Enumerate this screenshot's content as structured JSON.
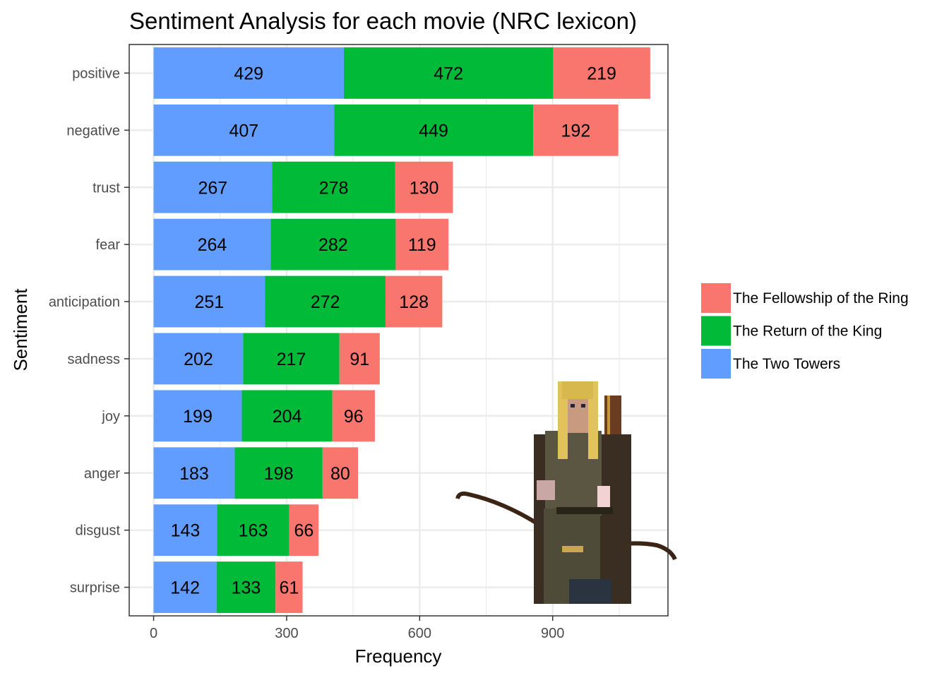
{
  "chart_data": {
    "type": "bar",
    "orientation": "horizontal",
    "stacked": true,
    "title": "Sentiment Analysis for each movie (NRC lexicon)",
    "xlabel": "Frequency",
    "ylabel": "Sentiment",
    "xlim": [
      -55,
      1160
    ],
    "xticks": [
      0,
      300,
      600,
      900
    ],
    "grid": true,
    "legend_position": "right",
    "categories": [
      "positive",
      "negative",
      "trust",
      "fear",
      "anticipation",
      "sadness",
      "joy",
      "anger",
      "disgust",
      "surprise"
    ],
    "series": [
      {
        "name": "The Two Towers",
        "color": "#619CFF",
        "values": [
          429,
          407,
          267,
          264,
          251,
          202,
          199,
          183,
          143,
          142
        ]
      },
      {
        "name": "The Return of the King",
        "color": "#00BA38",
        "values": [
          472,
          449,
          278,
          282,
          272,
          217,
          204,
          198,
          163,
          133
        ]
      },
      {
        "name": "The Fellowship of the Ring",
        "color": "#F8766D",
        "values": [
          219,
          192,
          130,
          119,
          128,
          91,
          96,
          80,
          66,
          61
        ]
      }
    ],
    "legend_order": [
      "The Fellowship of the Ring",
      "The Return of the King",
      "The Two Towers"
    ],
    "decoration_icon": "elf-archer-with-bow-icon"
  }
}
